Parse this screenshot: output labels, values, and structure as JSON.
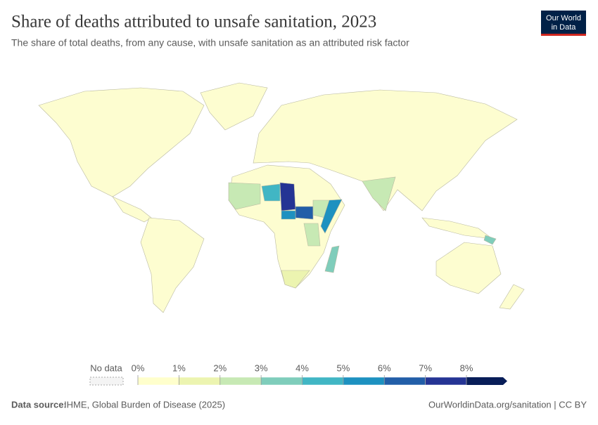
{
  "header": {
    "title": "Share of deaths attributed to unsafe sanitation, 2023",
    "subtitle": "The share of total deaths, from any cause, with unsafe sanitation as an attributed risk factor",
    "logo": [
      "Our World",
      "in Data"
    ]
  },
  "legend": {
    "no_data": "No data",
    "ticks": [
      {
        "value": 0,
        "label": "0%"
      },
      {
        "value": 1,
        "label": "1%"
      },
      {
        "value": 2,
        "label": "2%"
      },
      {
        "value": 3,
        "label": "3%"
      },
      {
        "value": 4,
        "label": "4%"
      },
      {
        "value": 5,
        "label": "5%"
      },
      {
        "value": 6,
        "label": "6%"
      },
      {
        "value": 7,
        "label": "7%"
      },
      {
        "value": 8,
        "label": "8%"
      }
    ],
    "colors": [
      "#ffffcc",
      "#ecf4b0",
      "#c7e9b4",
      "#7fcdbb",
      "#41b6c4",
      "#1d91c0",
      "#225ea8",
      "#253494",
      "#081d58"
    ]
  },
  "footer": {
    "source_label": "Data source:",
    "source": "IHME, Global Burden of Disease (2025)",
    "url": "OurWorldinData.org/sanitation | CC BY"
  }
}
